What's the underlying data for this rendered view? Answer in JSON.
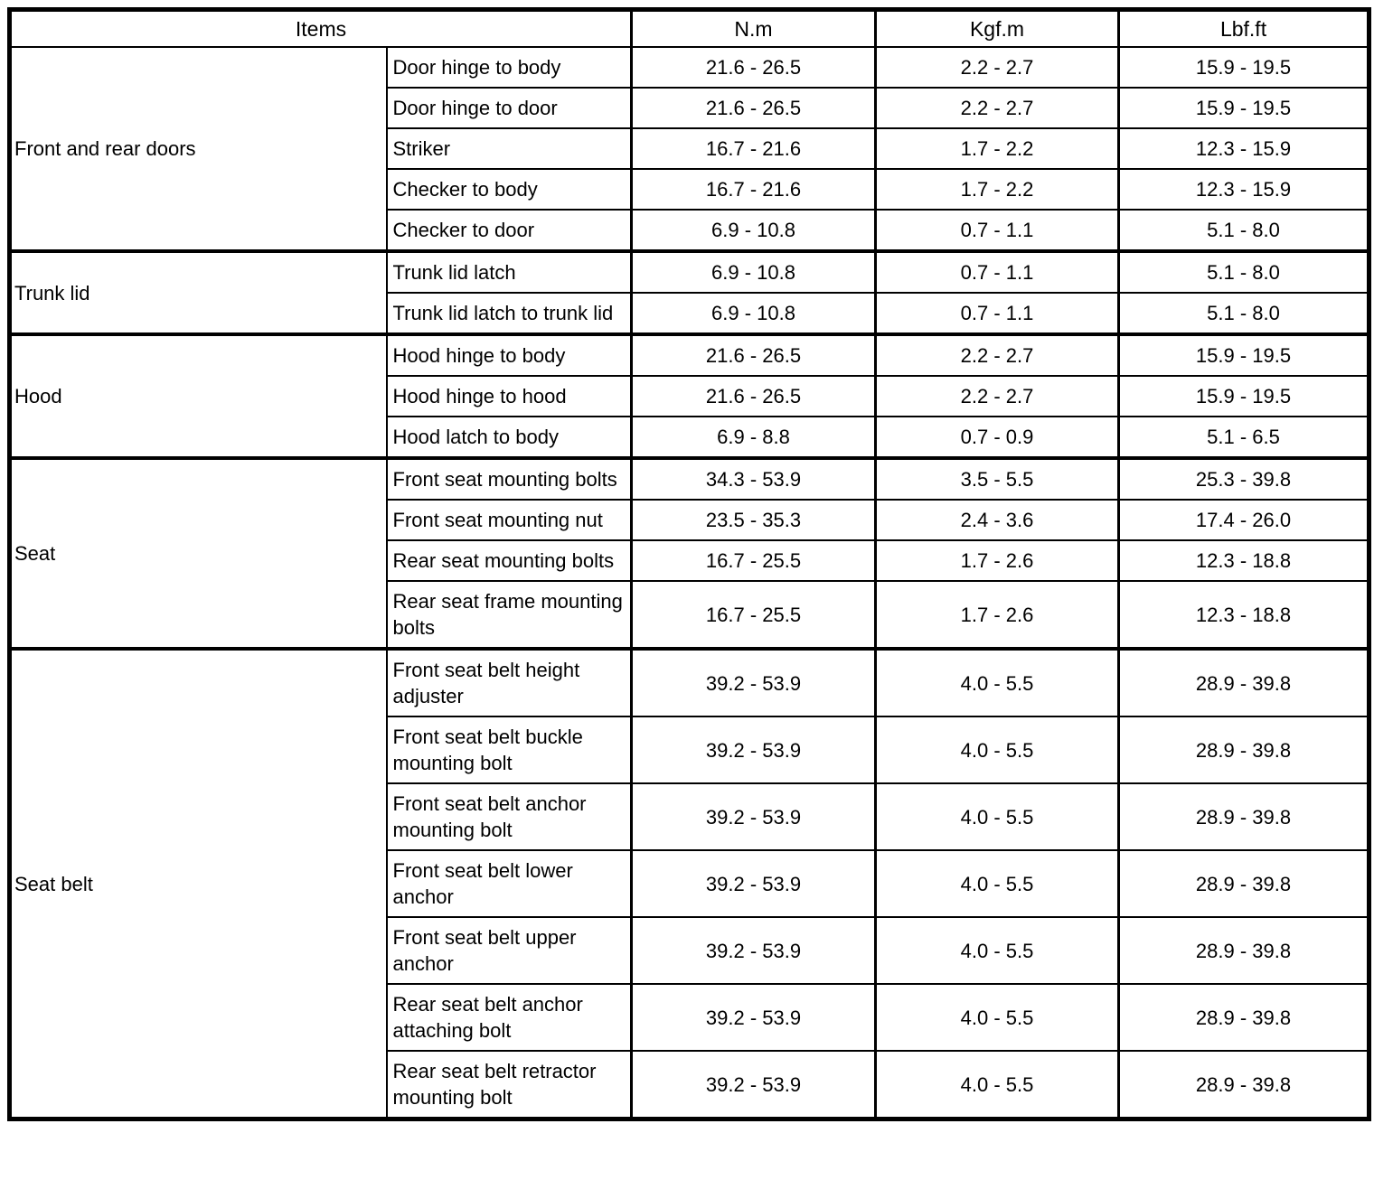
{
  "table": {
    "header": {
      "items_label": "Items",
      "units": [
        "N.m",
        "Kgf.m",
        "Lbf.ft"
      ]
    },
    "groups": [
      {
        "name": "Front and rear doors",
        "rows": [
          {
            "item": "Door hinge to body",
            "nm": "21.6 - 26.5",
            "kgfm": "2.2 - 2.7",
            "lbfft": "15.9 - 19.5"
          },
          {
            "item": "Door hinge to door",
            "nm": "21.6 - 26.5",
            "kgfm": "2.2 - 2.7",
            "lbfft": "15.9 - 19.5"
          },
          {
            "item": "Striker",
            "nm": "16.7 - 21.6",
            "kgfm": "1.7 - 2.2",
            "lbfft": "12.3 - 15.9"
          },
          {
            "item": "Checker to body",
            "nm": "16.7 - 21.6",
            "kgfm": "1.7 - 2.2",
            "lbfft": "12.3 - 15.9"
          },
          {
            "item": "Checker to door",
            "nm": "6.9 - 10.8",
            "kgfm": "0.7 - 1.1",
            "lbfft": "5.1 - 8.0"
          }
        ]
      },
      {
        "name": "Trunk lid",
        "rows": [
          {
            "item": "Trunk lid latch",
            "nm": "6.9 - 10.8",
            "kgfm": "0.7 - 1.1",
            "lbfft": "5.1 - 8.0"
          },
          {
            "item": "Trunk lid latch to trunk lid",
            "nm": "6.9 - 10.8",
            "kgfm": "0.7 - 1.1",
            "lbfft": "5.1 - 8.0"
          }
        ]
      },
      {
        "name": "Hood",
        "rows": [
          {
            "item": "Hood hinge to body",
            "nm": "21.6 - 26.5",
            "kgfm": "2.2 - 2.7",
            "lbfft": "15.9 - 19.5"
          },
          {
            "item": "Hood hinge to hood",
            "nm": "21.6 - 26.5",
            "kgfm": "2.2 - 2.7",
            "lbfft": "15.9 - 19.5"
          },
          {
            "item": "Hood latch to body",
            "nm": "6.9 - 8.8",
            "kgfm": "0.7 - 0.9",
            "lbfft": "5.1 - 6.5"
          }
        ]
      },
      {
        "name": "Seat",
        "rows": [
          {
            "item": "Front seat mounting bolts",
            "nm": "34.3 - 53.9",
            "kgfm": "3.5 - 5.5",
            "lbfft": "25.3 - 39.8"
          },
          {
            "item": "Front seat mounting nut",
            "nm": "23.5 - 35.3",
            "kgfm": "2.4 - 3.6",
            "lbfft": "17.4 - 26.0"
          },
          {
            "item": "Rear seat mounting bolts",
            "nm": "16.7 - 25.5",
            "kgfm": "1.7 - 2.6",
            "lbfft": "12.3 - 18.8"
          },
          {
            "item": "Rear seat frame mounting bolts",
            "nm": "16.7 - 25.5",
            "kgfm": "1.7 - 2.6",
            "lbfft": "12.3 - 18.8"
          }
        ]
      },
      {
        "name": "Seat belt",
        "rows": [
          {
            "item": "Front seat belt height adjuster",
            "nm": "39.2 - 53.9",
            "kgfm": "4.0 - 5.5",
            "lbfft": "28.9 - 39.8"
          },
          {
            "item": "Front seat belt buckle mounting bolt",
            "nm": "39.2 - 53.9",
            "kgfm": "4.0 - 5.5",
            "lbfft": "28.9 - 39.8"
          },
          {
            "item": "Front seat belt anchor mounting bolt",
            "nm": "39.2 - 53.9",
            "kgfm": "4.0 - 5.5",
            "lbfft": "28.9 - 39.8"
          },
          {
            "item": "Front seat belt lower anchor",
            "nm": "39.2 - 53.9",
            "kgfm": "4.0 - 5.5",
            "lbfft": "28.9 - 39.8"
          },
          {
            "item": "Front seat belt upper anchor",
            "nm": "39.2 - 53.9",
            "kgfm": "4.0 - 5.5",
            "lbfft": "28.9 - 39.8"
          },
          {
            "item": "Rear seat belt anchor attaching bolt",
            "nm": "39.2 - 53.9",
            "kgfm": "4.0 - 5.5",
            "lbfft": "28.9 - 39.8"
          },
          {
            "item": "Rear seat belt retractor mounting bolt",
            "nm": "39.2 - 53.9",
            "kgfm": "4.0 - 5.5",
            "lbfft": "28.9 - 39.8"
          }
        ]
      }
    ]
  }
}
